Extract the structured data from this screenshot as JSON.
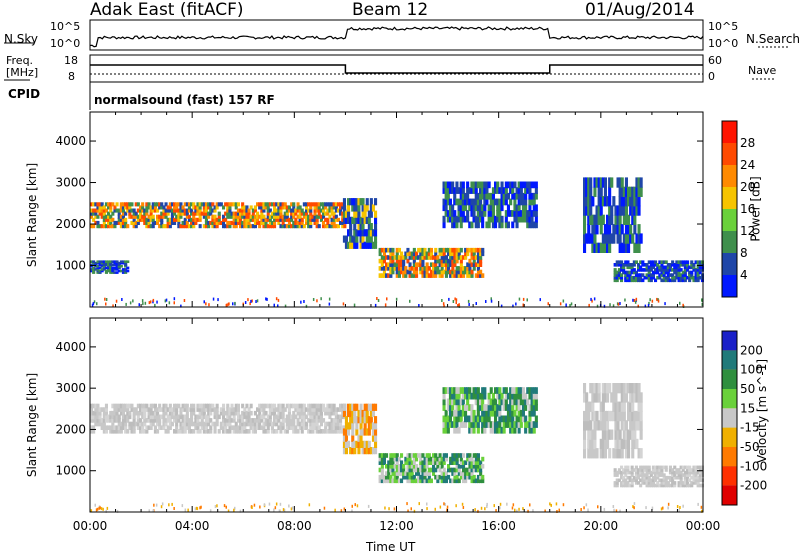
{
  "header": {
    "radar": "Adak East (fitACF)",
    "beam": "Beam 12",
    "date": "01/Aug/2014"
  },
  "noise_panel": {
    "left_label": "N.Sky",
    "right_label": "N.Search",
    "left_ticks": [
      "10^5",
      "10^0"
    ],
    "right_ticks": [
      "10^5",
      "10^0"
    ]
  },
  "freq_panel": {
    "left_label_1": "Freq.",
    "left_label_2": "[MHz]",
    "right_label": "Nave",
    "left_ticks": [
      "18",
      "8"
    ],
    "right_ticks": [
      "60",
      "0"
    ]
  },
  "cpid": {
    "label": "CPID",
    "text": "normalsound (fast) 157 RF"
  },
  "x_axis": {
    "label": "Time UT",
    "ticks": [
      "00:00",
      "04:00",
      "08:00",
      "12:00",
      "16:00",
      "20:00",
      "00:00"
    ]
  },
  "chart_data": [
    {
      "type": "heatmap",
      "name": "power",
      "ylabel": "Slant Range [km]",
      "xlabel": "",
      "xlim": [
        0,
        24
      ],
      "ylim": [
        0,
        4700
      ],
      "y_ticks": [
        "1000",
        "2000",
        "3000",
        "4000"
      ],
      "colorbar_label": "Power [dB]",
      "colorbar_ticks": [
        "4",
        "8",
        "12",
        "16",
        "20",
        "24",
        "28"
      ],
      "colorbar_colors": [
        "#0018ff",
        "#1f46a8",
        "#3f8f4c",
        "#6ad13a",
        "#f6c400",
        "#ff8a00",
        "#ff4a00",
        "#ff1400"
      ],
      "echo_bands": [
        {
          "t": [
            0.0,
            10.0
          ],
          "range_km": [
            1900,
            2500
          ],
          "value": "high"
        },
        {
          "t": [
            9.9,
            11.2
          ],
          "range_km": [
            1400,
            2600
          ],
          "value": "medium"
        },
        {
          "t": [
            11.3,
            15.4
          ],
          "range_km": [
            700,
            1400
          ],
          "value": "high"
        },
        {
          "t": [
            13.8,
            17.5
          ],
          "range_km": [
            1900,
            3000
          ],
          "value": "low"
        },
        {
          "t": [
            19.3,
            21.6
          ],
          "range_km": [
            1300,
            3100
          ],
          "value": "low"
        },
        {
          "t": [
            20.5,
            24.0
          ],
          "range_km": [
            600,
            1100
          ],
          "value": "low"
        },
        {
          "t": [
            0.0,
            1.5
          ],
          "range_km": [
            800,
            1100
          ],
          "value": "low"
        }
      ]
    },
    {
      "type": "heatmap",
      "name": "velocity",
      "ylabel": "Slant Range [km]",
      "xlabel": "Time UT",
      "xlim": [
        0,
        24
      ],
      "ylim": [
        0,
        4700
      ],
      "y_ticks": [
        "1000",
        "2000",
        "3000",
        "4000"
      ],
      "colorbar_label": "Velocity [m s^-1]",
      "colorbar_ticks": [
        "200",
        "100",
        "50",
        "15",
        "-15",
        "-50",
        "-100",
        "-200"
      ],
      "colorbar_colors": [
        "#1a20c8",
        "#207a7a",
        "#2f8f3e",
        "#6ad13a",
        "#c8c8c8",
        "#f0b000",
        "#ff7a00",
        "#ff3000",
        "#e00000"
      ],
      "echo_bands": [
        {
          "t": [
            0.0,
            10.0
          ],
          "range_km": [
            1900,
            2600
          ],
          "value": "grey"
        },
        {
          "t": [
            9.9,
            11.2
          ],
          "range_km": [
            1400,
            2600
          ],
          "value": "orange"
        },
        {
          "t": [
            11.3,
            15.4
          ],
          "range_km": [
            700,
            1400
          ],
          "value": "green"
        },
        {
          "t": [
            13.8,
            17.5
          ],
          "range_km": [
            1900,
            3000
          ],
          "value": "green"
        },
        {
          "t": [
            19.3,
            21.6
          ],
          "range_km": [
            1300,
            3100
          ],
          "value": "grey"
        },
        {
          "t": [
            20.5,
            24.0
          ],
          "range_km": [
            600,
            1100
          ],
          "value": "grey"
        }
      ]
    }
  ]
}
